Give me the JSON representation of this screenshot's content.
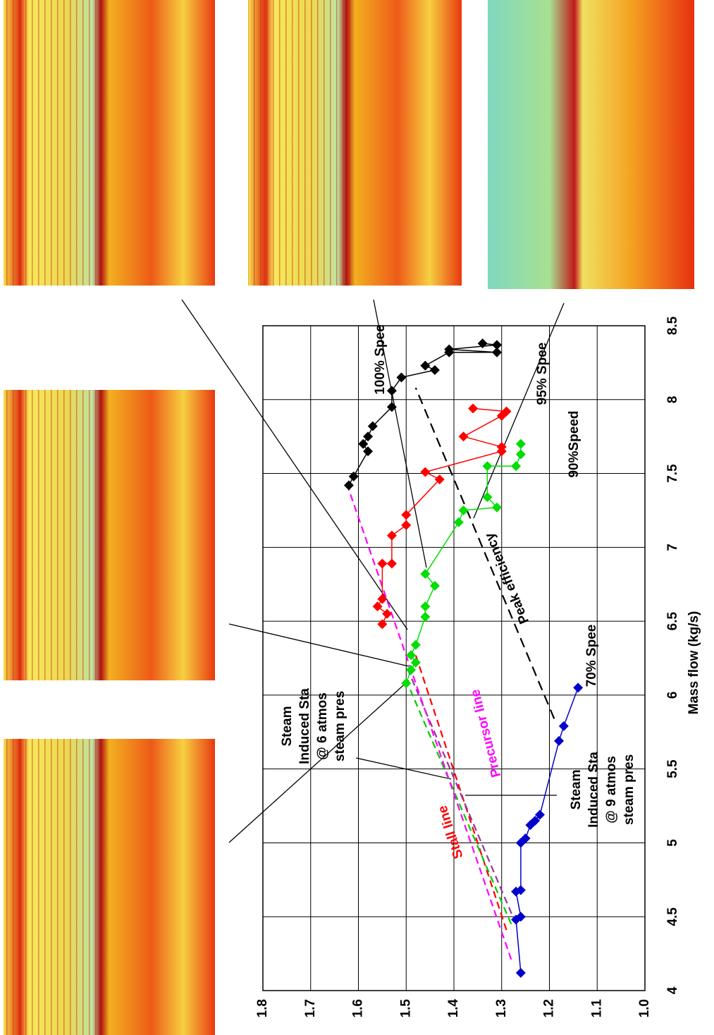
{
  "chart_data": {
    "type": "scatter",
    "x_label": "Mass flow (kg/s)",
    "xlim": [
      4,
      8.5
    ],
    "xticks": [
      4,
      4.5,
      5,
      5.5,
      6,
      6.5,
      7,
      7.5,
      8,
      8.5
    ],
    "ylim": [
      1.0,
      1.8
    ],
    "yticks": [
      {
        "value": 1.0,
        "label": "1.0"
      },
      1.1,
      1.2,
      1.3,
      1.4,
      1.5,
      1.6,
      1.7,
      1.8
    ],
    "grid": true,
    "series": [
      {
        "name": "100% Spee",
        "color": "#000000",
        "x": [
          7.42,
          7.48,
          7.65,
          7.7,
          7.75,
          7.82,
          7.95,
          8.06,
          8.15,
          8.2,
          8.23,
          8.32,
          8.32,
          8.34,
          8.37,
          8.38
        ],
        "values": [
          1.62,
          1.61,
          1.58,
          1.59,
          1.58,
          1.57,
          1.53,
          1.53,
          1.51,
          1.44,
          1.46,
          1.41,
          1.31,
          1.41,
          1.31,
          1.34
        ]
      },
      {
        "name": "95% Spee",
        "color": "#ff0000",
        "x": [
          6.48,
          6.55,
          6.6,
          6.65,
          6.89,
          6.89,
          7.08,
          7.15,
          7.22,
          7.46,
          7.51,
          7.65,
          7.68,
          7.75,
          7.89,
          7.92,
          7.94
        ],
        "values": [
          1.55,
          1.54,
          1.56,
          1.55,
          1.55,
          1.53,
          1.53,
          1.5,
          1.5,
          1.43,
          1.46,
          1.3,
          1.3,
          1.38,
          1.3,
          1.29,
          1.36
        ]
      },
      {
        "name": "90%Speed",
        "color": "#00dd00",
        "x": [
          6.08,
          6.17,
          6.22,
          6.27,
          6.34,
          6.53,
          6.6,
          6.74,
          6.82,
          7.17,
          7.25,
          7.27,
          7.34,
          7.55,
          7.55,
          7.63,
          7.7
        ],
        "values": [
          1.5,
          1.49,
          1.48,
          1.49,
          1.48,
          1.46,
          1.46,
          1.44,
          1.46,
          1.39,
          1.38,
          1.31,
          1.33,
          1.33,
          1.27,
          1.26,
          1.26
        ]
      },
      {
        "name": "70% Spee",
        "color": "#0000cc",
        "x": [
          4.12,
          4.48,
          4.5,
          4.67,
          4.68,
          5.0,
          5.03,
          5.12,
          5.15,
          5.19,
          5.69,
          5.79,
          6.05
        ],
        "values": [
          1.26,
          1.27,
          1.26,
          1.27,
          1.26,
          1.26,
          1.25,
          1.24,
          1.23,
          1.22,
          1.18,
          1.17,
          1.14
        ]
      }
    ],
    "reference_lines": [
      {
        "label": "Stall line",
        "color": "#ff0000",
        "x": [
          4.41,
          6.27
        ],
        "values": [
          1.29,
          1.48
        ]
      },
      {
        "color": "#00cc00",
        "x": [
          4.45,
          6.1
        ],
        "values": [
          1.28,
          1.5
        ]
      },
      {
        "color": "#993399",
        "x": [
          4.45,
          6.2
        ],
        "values": [
          1.27,
          1.5
        ]
      },
      {
        "label": "Precursor line",
        "color": "#ff00ff",
        "x": [
          4.21,
          7.39
        ],
        "values": [
          1.28,
          1.62
        ]
      },
      {
        "label": "Peak efficiency",
        "color": "#000000",
        "x": [
          5.84,
          8.08
        ],
        "values": [
          1.19,
          1.48
        ]
      }
    ],
    "annotations": [
      [
        "Steam",
        "Induced Sta",
        "@ 6 atmos",
        "steam pres"
      ],
      [
        "Steam",
        "Induced Sta",
        "@ 9 atmos",
        "steam pres"
      ]
    ]
  }
}
